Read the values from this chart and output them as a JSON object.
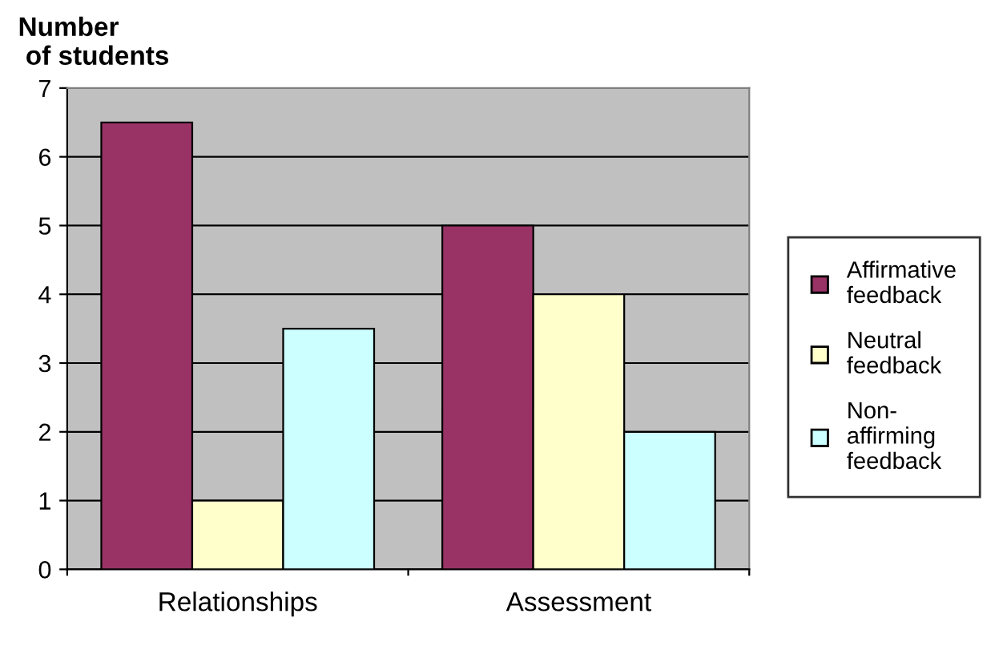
{
  "chart_data": {
    "type": "bar",
    "ylabel": "Number of students",
    "categories": [
      "Relationships",
      "Assessment"
    ],
    "series": [
      {
        "name": "Affirmative feedback",
        "color": "#993366",
        "values": [
          6.5,
          5
        ]
      },
      {
        "name": "Neutral feedback",
        "color": "#ffffcc",
        "values": [
          1,
          4
        ]
      },
      {
        "name": "Non-affirming feedback",
        "color": "#ccffff",
        "values": [
          3.5,
          2
        ]
      }
    ],
    "ylim": [
      0,
      7
    ],
    "yticks": [
      0,
      1,
      2,
      3,
      4,
      5,
      6,
      7
    ],
    "grid": "y",
    "legend": "right"
  }
}
